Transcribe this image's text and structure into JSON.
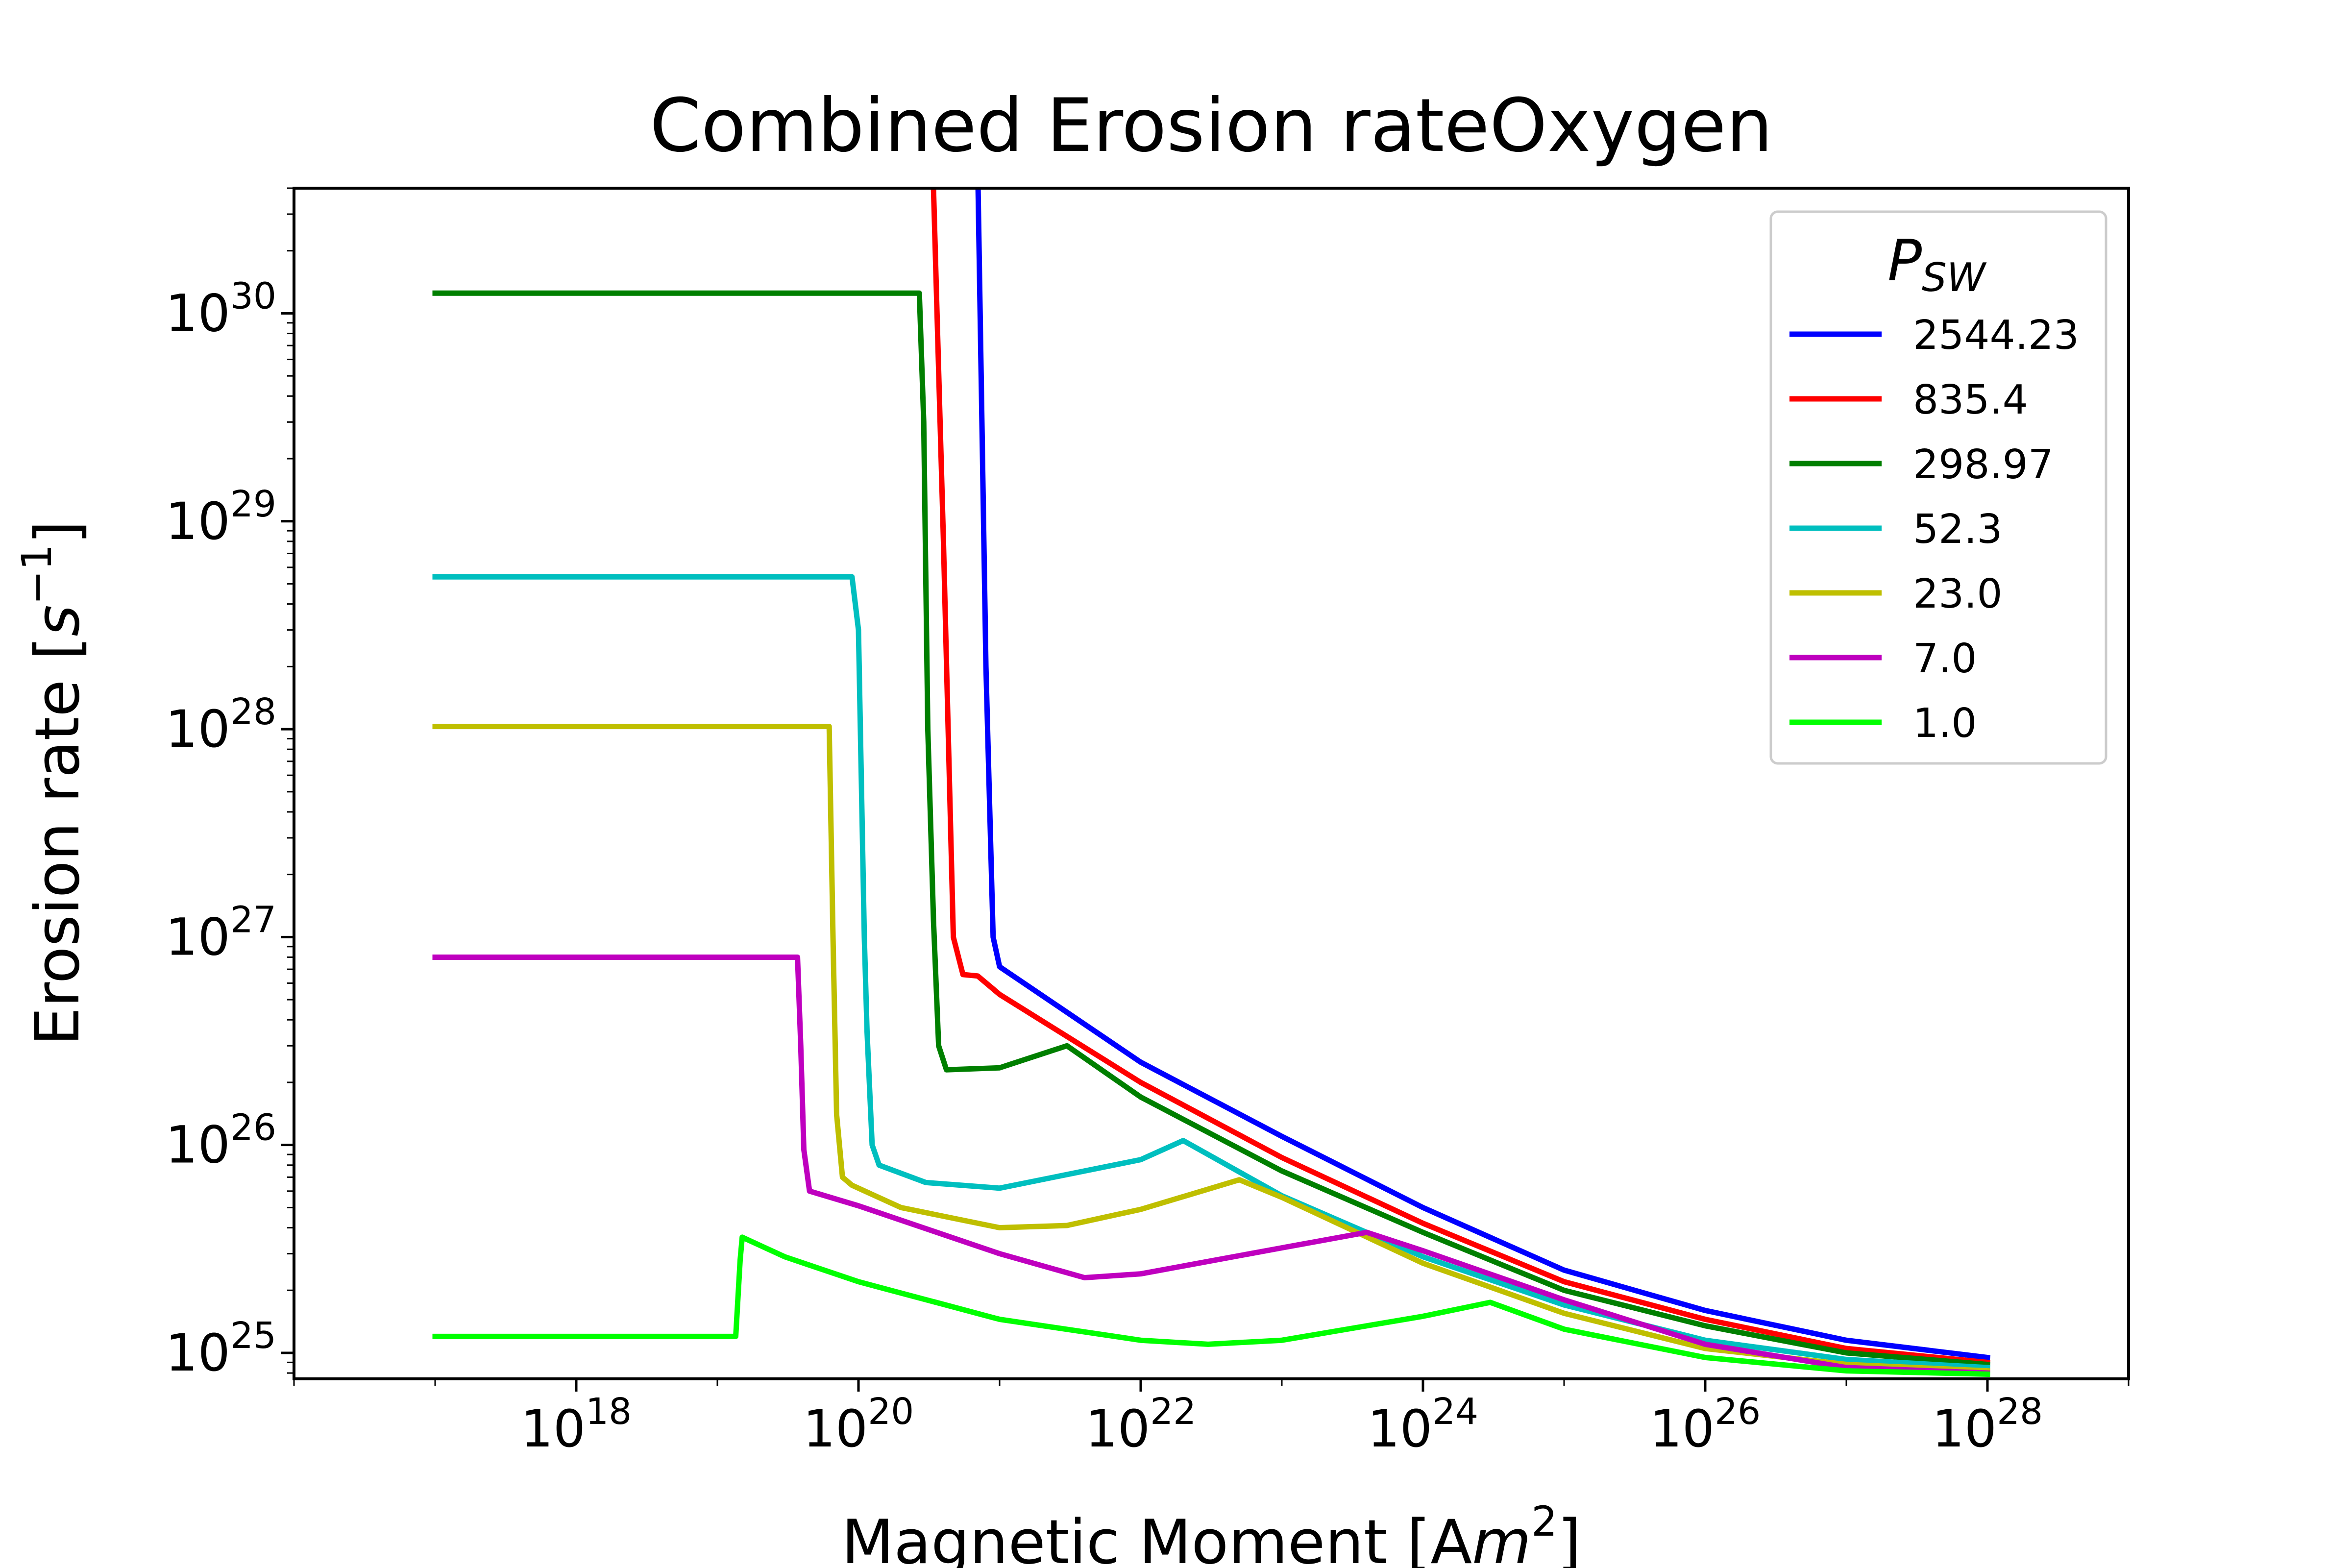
{
  "chart_data": {
    "type": "line",
    "title": "Combined Erosion rateOxygen",
    "xlabel": {
      "text": "Magnetic Moment [A",
      "math_var": "m",
      "math_sup": "2",
      "suffix": "]"
    },
    "ylabel": {
      "text": "Erosion rate [",
      "math_var": "s",
      "math_sup": "−1",
      "suffix": "]"
    },
    "xscale": "log",
    "yscale": "log",
    "xlim": [
      1e+16,
      1e+29
    ],
    "ylim": [
      7.5e+24,
      4e+30
    ],
    "x_ticks": [
      {
        "base": "10",
        "exp": "18",
        "value": 1e+18
      },
      {
        "base": "10",
        "exp": "20",
        "value": 1e+20
      },
      {
        "base": "10",
        "exp": "22",
        "value": 1e+22
      },
      {
        "base": "10",
        "exp": "24",
        "value": 1e+24
      },
      {
        "base": "10",
        "exp": "26",
        "value": 1e+26
      },
      {
        "base": "10",
        "exp": "28",
        "value": 1e+28
      }
    ],
    "y_ticks": [
      {
        "base": "10",
        "exp": "25",
        "value": 1e+25
      },
      {
        "base": "10",
        "exp": "26",
        "value": 1e+26
      },
      {
        "base": "10",
        "exp": "27",
        "value": 1e+27
      },
      {
        "base": "10",
        "exp": "28",
        "value": 1e+28
      },
      {
        "base": "10",
        "exp": "29",
        "value": 1e+29
      },
      {
        "base": "10",
        "exp": "30",
        "value": 1e+30
      }
    ],
    "grid": false,
    "legend": {
      "placement": "top-right",
      "title_main": "P",
      "title_sub": "SW"
    },
    "series": [
      {
        "name": "2544.23",
        "color": "#0000ff",
        "points": [
          [
            1e+20,
            6e+30
          ],
          [
            7e+20,
            5e+30
          ],
          [
            8e+20,
            2e+28
          ],
          [
            9e+20,
            1e+27
          ],
          [
            1e+21,
            7.2e+26
          ],
          [
            1e+22,
            2.5e+26
          ],
          [
            1e+23,
            1.1e+26
          ],
          [
            1e+24,
            5e+25
          ],
          [
            1e+25,
            2.5e+25
          ],
          [
            1e+26,
            1.6e+25
          ],
          [
            1e+27,
            1.15e+25
          ],
          [
            1e+28,
            9.5e+24
          ]
        ]
      },
      {
        "name": "835.4",
        "color": "#ff0000",
        "points": [
          [
            2e+20,
            6e+30
          ],
          [
            3.4e+20,
            4e+30
          ],
          [
            4e+20,
            8e+28
          ],
          [
            4.7e+20,
            1e+27
          ],
          [
            5.5e+20,
            6.6e+26
          ],
          [
            7e+20,
            6.5e+26
          ],
          [
            1e+21,
            5.3e+26
          ],
          [
            1e+22,
            2e+26
          ],
          [
            1e+23,
            8.7e+25
          ],
          [
            1e+24,
            4.2e+25
          ],
          [
            1e+25,
            2.2e+25
          ],
          [
            1e+26,
            1.45e+25
          ],
          [
            1e+27,
            1.05e+25
          ],
          [
            1e+28,
            9e+24
          ]
        ]
      },
      {
        "name": "298.97",
        "color": "#007f00",
        "points": [
          [
            1e+17,
            1.25e+30
          ],
          [
            2.7e+20,
            1.25e+30
          ],
          [
            2.9e+20,
            3e+29
          ],
          [
            3.1e+20,
            1e+28
          ],
          [
            3.4e+20,
            1.2e+27
          ],
          [
            3.7e+20,
            3e+26
          ],
          [
            4.2e+20,
            2.3e+26
          ],
          [
            1e+21,
            2.35e+26
          ],
          [
            3e+21,
            3e+26
          ],
          [
            1e+22,
            1.7e+26
          ],
          [
            1e+23,
            7.5e+25
          ],
          [
            1e+24,
            3.8e+25
          ],
          [
            1e+25,
            2e+25
          ],
          [
            1e+26,
            1.35e+25
          ],
          [
            1e+27,
            1e+25
          ],
          [
            1e+28,
            8.8e+24
          ]
        ]
      },
      {
        "name": "52.3",
        "color": "#00bfbf",
        "points": [
          [
            1e+17,
            5.4e+28
          ],
          [
            9e+19,
            5.4e+28
          ],
          [
            1e+20,
            3e+28
          ],
          [
            1.1e+20,
            1e+27
          ],
          [
            1.15e+20,
            3.5e+26
          ],
          [
            1.25e+20,
            1e+26
          ],
          [
            1.4e+20,
            8e+25
          ],
          [
            3e+20,
            6.6e+25
          ],
          [
            1e+21,
            6.2e+25
          ],
          [
            1e+22,
            8.5e+25
          ],
          [
            2e+22,
            1.05e+26
          ],
          [
            1e+23,
            5.7e+25
          ],
          [
            1e+24,
            2.9e+25
          ],
          [
            1e+25,
            1.7e+25
          ],
          [
            1e+26,
            1.15e+25
          ],
          [
            1e+27,
            9.3e+24
          ],
          [
            1e+28,
            8.5e+24
          ]
        ]
      },
      {
        "name": "23.0",
        "color": "#bfbf00",
        "points": [
          [
            1e+17,
            1.03e+28
          ],
          [
            6.2e+19,
            1.03e+28
          ],
          [
            6.6e+19,
            1e+27
          ],
          [
            7e+19,
            1.4e+26
          ],
          [
            7.7e+19,
            7e+25
          ],
          [
            9e+19,
            6.4e+25
          ],
          [
            2e+20,
            5e+25
          ],
          [
            1e+21,
            4e+25
          ],
          [
            3e+21,
            4.1e+25
          ],
          [
            1e+22,
            4.9e+25
          ],
          [
            5e+22,
            6.8e+25
          ],
          [
            1e+23,
            5.6e+25
          ],
          [
            1e+24,
            2.7e+25
          ],
          [
            1e+25,
            1.55e+25
          ],
          [
            1e+26,
            1.05e+25
          ],
          [
            1e+27,
            8.8e+24
          ],
          [
            1e+28,
            8.2e+24
          ]
        ]
      },
      {
        "name": "7.0",
        "color": "#bf00bf",
        "points": [
          [
            1e+17,
            8e+26
          ],
          [
            3.7e+19,
            8e+26
          ],
          [
            3.9e+19,
            3e+26
          ],
          [
            4.1e+19,
            9.5e+25
          ],
          [
            4.5e+19,
            6e+25
          ],
          [
            1e+20,
            5.1e+25
          ],
          [
            1e+21,
            3e+25
          ],
          [
            4e+21,
            2.3e+25
          ],
          [
            1e+22,
            2.4e+25
          ],
          [
            1e+23,
            3.2e+25
          ],
          [
            4e+23,
            3.8e+25
          ],
          [
            1e+24,
            3.1e+25
          ],
          [
            1e+25,
            1.8e+25
          ],
          [
            1e+26,
            1.1e+25
          ],
          [
            1e+27,
            8.5e+24
          ],
          [
            1e+28,
            8e+24
          ]
        ]
      },
      {
        "name": "1.0",
        "color": "#00ff00",
        "points": [
          [
            1e+17,
            1.2e+25
          ],
          [
            1.35e+19,
            1.2e+25
          ],
          [
            1.45e+19,
            2.8e+25
          ],
          [
            1.5e+19,
            3.6e+25
          ],
          [
            3e+19,
            2.9e+25
          ],
          [
            1e+20,
            2.2e+25
          ],
          [
            1e+21,
            1.45e+25
          ],
          [
            1e+22,
            1.15e+25
          ],
          [
            3e+22,
            1.1e+25
          ],
          [
            1e+23,
            1.15e+25
          ],
          [
            1e+24,
            1.5e+25
          ],
          [
            3e+24,
            1.75e+25
          ],
          [
            1e+25,
            1.3e+25
          ],
          [
            1e+26,
            9.5e+24
          ],
          [
            1e+27,
            8.2e+24
          ],
          [
            1e+28,
            7.9e+24
          ]
        ]
      }
    ]
  }
}
